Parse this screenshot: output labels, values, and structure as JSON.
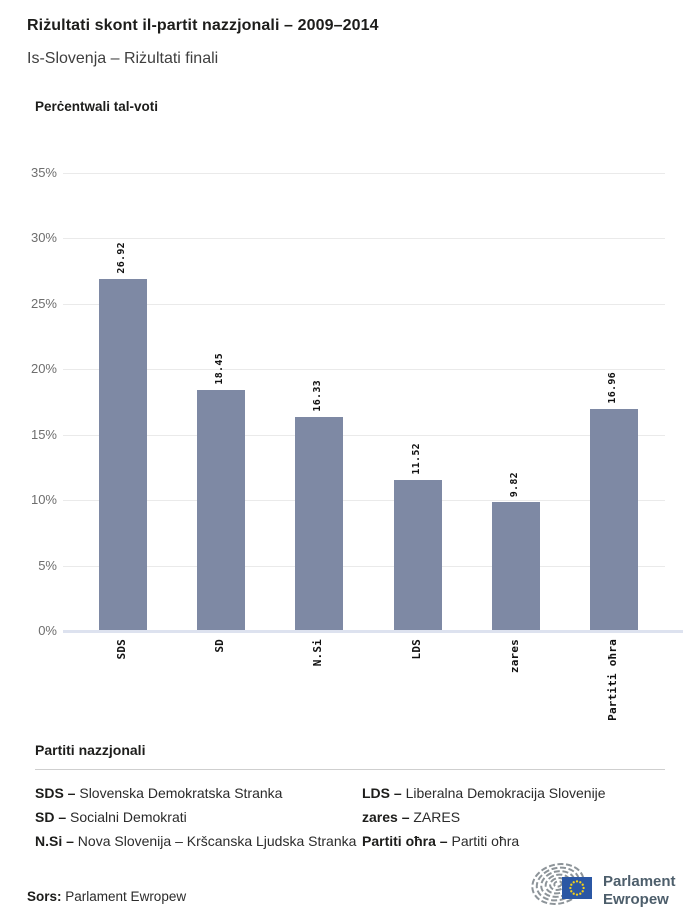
{
  "header": {
    "title": "Riżultati skont il-partit nazzjonali – 2009–2014",
    "subtitle": "Is-Slovenja – Riżultati finali"
  },
  "chart_data": {
    "type": "bar",
    "title": "Perċentwali tal-voti",
    "ylabel": "Perċentwali tal-voti",
    "xlabel": "",
    "categories": [
      "SDS",
      "SD",
      "N.Si",
      "LDS",
      "zares",
      "Partiti oħra"
    ],
    "values": [
      26.92,
      18.45,
      16.33,
      11.52,
      9.82,
      16.96
    ],
    "value_labels": [
      "26.92",
      "18.45",
      "16.33",
      "11.52",
      "9.82",
      "16.96"
    ],
    "ylim": [
      0,
      35
    ],
    "ytick_step": 5,
    "ytick_labels": [
      "0%",
      "5%",
      "10%",
      "15%",
      "20%",
      "25%",
      "30%",
      "35%"
    ],
    "grid": true,
    "legend_position": "below"
  },
  "legend": {
    "header": "Partiti nazzjonali",
    "columns": [
      [
        {
          "term": "SDS –",
          "definition": "Slovenska Demokratska Stranka"
        },
        {
          "term": "SD –",
          "definition": "Socialni Demokrati"
        },
        {
          "term": "N.Si –",
          "definition": "Nova Slovenija – Kršcanska Ljudska Stranka"
        }
      ],
      [
        {
          "term": "LDS –",
          "definition": "Liberalna Demokracija Slovenije"
        },
        {
          "term": "zares –",
          "definition": "ZARES"
        },
        {
          "term": "Partiti oħra –",
          "definition": "Partiti oħra"
        }
      ]
    ]
  },
  "footer": {
    "source_label": "Sors:",
    "source": "Parlament Ewropew"
  },
  "logo": {
    "line1": "Parlament",
    "line2": "Ewropew"
  },
  "colors": {
    "bar": "#7e89a4",
    "grid": "#eaeaea",
    "axis_line": "#dde2ef",
    "tick_text": "#6e6e6e",
    "flag_blue": "#2b57a4",
    "star_gold": "#f7d117",
    "hemicycle_gray": "#8d9499",
    "logo_text": "#4d5e6b"
  }
}
